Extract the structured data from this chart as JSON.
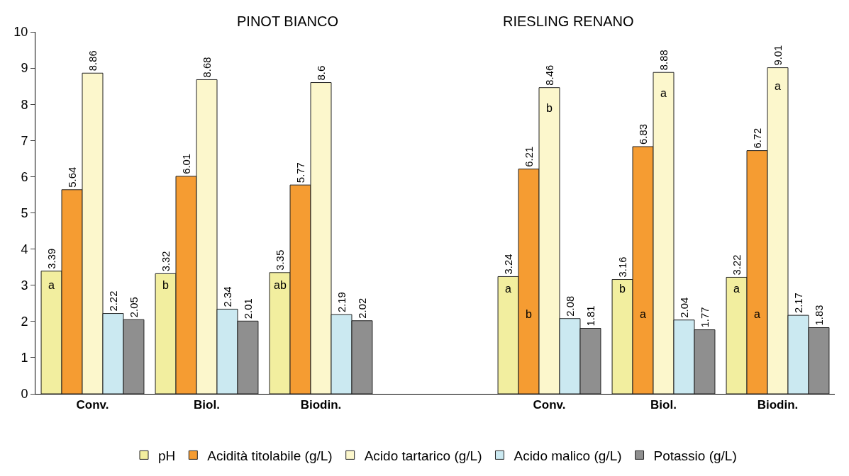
{
  "chart_data": {
    "type": "bar",
    "categories": [
      "Conv.",
      "Biol.",
      "Biodin.",
      null,
      "Conv.",
      "Biol.",
      "Biodin."
    ],
    "series": [
      {
        "name": "pH",
        "color": "#f2ee9f",
        "values": [
          3.39,
          3.32,
          3.35,
          null,
          3.24,
          3.16,
          3.22
        ]
      },
      {
        "name": "Acidità titolabile (g/L)",
        "color": "#f59c32",
        "values": [
          5.64,
          6.01,
          5.77,
          null,
          6.21,
          6.83,
          6.72
        ]
      },
      {
        "name": "Acido tartarico (g/L)",
        "color": "#fcf7cc",
        "values": [
          8.86,
          8.68,
          8.6,
          null,
          8.46,
          8.88,
          9.01
        ]
      },
      {
        "name": "Acido malico (g/L)",
        "color": "#cbe9f1",
        "values": [
          2.22,
          2.34,
          2.19,
          null,
          2.08,
          2.04,
          2.17
        ]
      },
      {
        "name": "Potassio (g/L)",
        "color": "#8f8f8f",
        "values": [
          2.05,
          2.01,
          2.02,
          null,
          1.81,
          1.77,
          1.83
        ]
      }
    ],
    "ylim": [
      0,
      10
    ],
    "yticks": [
      0,
      1,
      2,
      3,
      4,
      5,
      6,
      7,
      8,
      9,
      10
    ],
    "grid": false,
    "legend": "bottom",
    "data_labels": true,
    "annotations": [
      "PINOT BIANCO",
      "RIESLING RENANO",
      "a",
      "b",
      "ab",
      "a",
      "b",
      "a",
      "b",
      "a",
      "a",
      "b",
      "a",
      "a"
    ]
  }
}
